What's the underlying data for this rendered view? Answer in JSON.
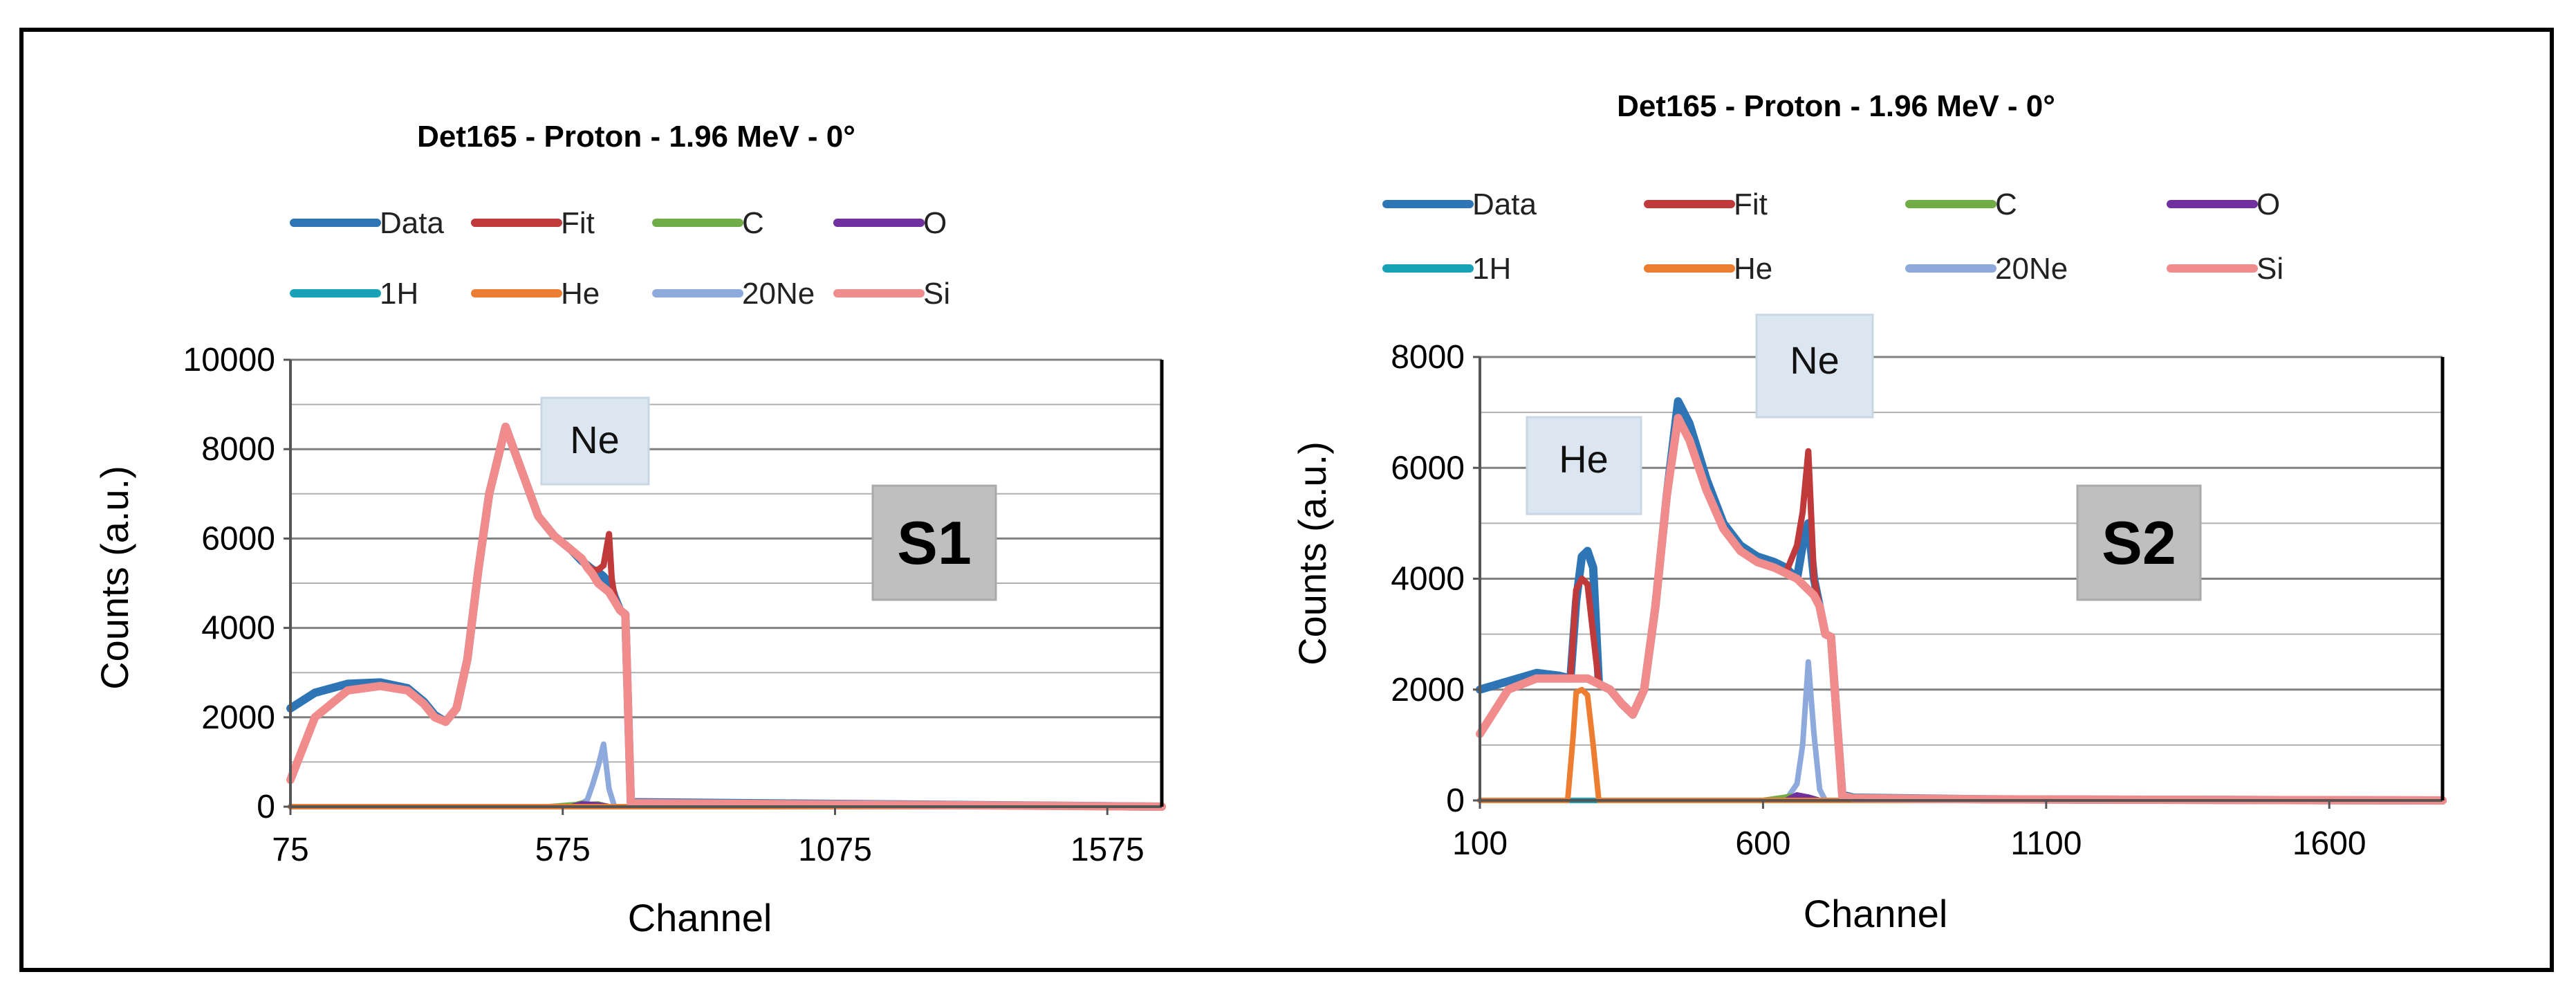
{
  "colors": {
    "Data": "#2E75B6",
    "Fit": "#C0393B",
    "C": "#70AD47",
    "O": "#7030A0",
    "1H": "#17A2B8",
    "He": "#ED7D31",
    "20Ne": "#8EA9DB",
    "Si": "#F08C8C",
    "grid": "#808080",
    "callout_bg": "#DCE6F1",
    "panel_bg": "#BFBFBF"
  },
  "chart_data": [
    {
      "type": "line",
      "title": "Det165 - Proton - 1.96 MeV - 0°",
      "xlabel": "Channel",
      "ylabel": "Counts (a.u.)",
      "xlim": [
        75,
        1675
      ],
      "ylim": [
        0,
        10000
      ],
      "xticks": [
        75,
        575,
        1075,
        1575
      ],
      "yticks": [
        0,
        2000,
        4000,
        6000,
        8000,
        10000
      ],
      "legend": [
        "Data",
        "Fit",
        "C",
        "O",
        "1H",
        "He",
        "20Ne",
        "Si"
      ],
      "callouts": [
        "Ne"
      ],
      "panel_label": "S1",
      "series": [
        {
          "name": "Data",
          "x": [
            75,
            120,
            180,
            240,
            290,
            320,
            340,
            360,
            380,
            400,
            420,
            440,
            470,
            500,
            530,
            560,
            590,
            610,
            620,
            630,
            640,
            650,
            660,
            665,
            670,
            680,
            690,
            700,
            1200,
            1675
          ],
          "y": [
            2200,
            2550,
            2750,
            2780,
            2650,
            2350,
            2050,
            1900,
            2200,
            3300,
            5300,
            7000,
            8500,
            7500,
            6500,
            6050,
            5750,
            5500,
            5400,
            5300,
            5250,
            5150,
            5000,
            4900,
            4700,
            4400,
            4300,
            100,
            50,
            0
          ]
        },
        {
          "name": "Fit",
          "x": [
            75,
            120,
            180,
            240,
            290,
            320,
            340,
            360,
            380,
            400,
            420,
            440,
            470,
            500,
            530,
            560,
            590,
            610,
            620,
            630,
            640,
            650,
            660,
            665,
            670,
            680,
            690,
            700,
            1200,
            1675
          ],
          "y": [
            600,
            2000,
            2600,
            2700,
            2600,
            2300,
            2000,
            1900,
            2200,
            3300,
            5300,
            7000,
            8500,
            7500,
            6500,
            6050,
            5750,
            5550,
            5400,
            5300,
            5300,
            5400,
            6100,
            5100,
            4700,
            4400,
            4300,
            80,
            40,
            0
          ]
        },
        {
          "name": "C",
          "x": [
            75,
            550,
            600,
            610,
            620,
            640,
            660,
            1675
          ],
          "y": [
            0,
            0,
            50,
            80,
            50,
            60,
            0,
            0
          ]
        },
        {
          "name": "O",
          "x": [
            75,
            590,
            610,
            640,
            660,
            1675
          ],
          "y": [
            0,
            0,
            60,
            40,
            0,
            0
          ]
        },
        {
          "name": "1H",
          "x": [
            75,
            1675
          ],
          "y": [
            0,
            0
          ]
        },
        {
          "name": "He",
          "x": [
            75,
            1675
          ],
          "y": [
            0,
            0
          ]
        },
        {
          "name": "20Ne",
          "x": [
            75,
            600,
            620,
            630,
            640,
            650,
            655,
            660,
            670,
            1675
          ],
          "y": [
            0,
            0,
            150,
            500,
            900,
            1400,
            900,
            400,
            0,
            0
          ]
        },
        {
          "name": "Si",
          "x": [
            75,
            120,
            180,
            240,
            290,
            320,
            340,
            360,
            380,
            400,
            420,
            440,
            470,
            500,
            530,
            560,
            590,
            610,
            620,
            630,
            640,
            650,
            660,
            665,
            670,
            680,
            690,
            700,
            1200,
            1675
          ],
          "y": [
            600,
            2000,
            2600,
            2700,
            2600,
            2300,
            2000,
            1900,
            2200,
            3300,
            5300,
            7000,
            8500,
            7500,
            6500,
            6050,
            5750,
            5550,
            5350,
            5200,
            5000,
            4900,
            4800,
            4700,
            4600,
            4400,
            4300,
            80,
            40,
            0
          ]
        }
      ]
    },
    {
      "type": "line",
      "title": "Det165 - Proton - 1.96 MeV - 0°",
      "xlabel": "Channel",
      "ylabel": "Counts (a.u.)",
      "xlim": [
        100,
        1800
      ],
      "ylim": [
        0,
        8000
      ],
      "xticks": [
        100,
        600,
        1100,
        1600
      ],
      "yticks": [
        0,
        2000,
        4000,
        6000,
        8000
      ],
      "legend": [
        "Data",
        "Fit",
        "C",
        "O",
        "1H",
        "He",
        "20Ne",
        "Si"
      ],
      "callouts": [
        "He",
        "Ne"
      ],
      "panel_label": "S2",
      "series": [
        {
          "name": "Data",
          "x": [
            100,
            150,
            200,
            240,
            260,
            270,
            280,
            290,
            300,
            310,
            330,
            350,
            370,
            390,
            410,
            430,
            450,
            470,
            500,
            530,
            560,
            590,
            620,
            640,
            660,
            670,
            680,
            690,
            700,
            710,
            720,
            740,
            760,
            1000,
            1800
          ],
          "y": [
            2000,
            2150,
            2300,
            2250,
            2200,
            3600,
            4400,
            4500,
            4200,
            2100,
            2000,
            1750,
            1550,
            2000,
            3500,
            5500,
            7200,
            6800,
            5800,
            5000,
            4600,
            4400,
            4300,
            4200,
            4000,
            4600,
            5000,
            4000,
            3500,
            3000,
            2950,
            100,
            50,
            20,
            0
          ]
        },
        {
          "name": "Fit",
          "x": [
            100,
            150,
            200,
            240,
            260,
            270,
            280,
            290,
            300,
            310,
            330,
            350,
            370,
            390,
            410,
            430,
            450,
            470,
            500,
            530,
            560,
            590,
            620,
            640,
            660,
            670,
            680,
            690,
            700,
            710,
            720,
            740,
            760,
            1000,
            1800
          ],
          "y": [
            1200,
            2000,
            2200,
            2200,
            2200,
            3800,
            4000,
            3900,
            3000,
            2100,
            2000,
            1750,
            1550,
            2000,
            3500,
            5500,
            6900,
            6500,
            5600,
            4900,
            4500,
            4300,
            4200,
            4100,
            4600,
            5200,
            6300,
            4000,
            3500,
            3000,
            2950,
            80,
            40,
            20,
            0
          ]
        },
        {
          "name": "C",
          "x": [
            100,
            600,
            640,
            650,
            660,
            680,
            700,
            1800
          ],
          "y": [
            0,
            0,
            60,
            80,
            50,
            60,
            0,
            0
          ]
        },
        {
          "name": "O",
          "x": [
            100,
            640,
            660,
            680,
            700,
            1800
          ],
          "y": [
            0,
            0,
            100,
            60,
            0,
            0
          ]
        },
        {
          "name": "1H",
          "x": [
            100,
            1800
          ],
          "y": [
            0,
            0
          ]
        },
        {
          "name": "He",
          "x": [
            100,
            255,
            265,
            270,
            280,
            290,
            300,
            310,
            1800
          ],
          "y": [
            0,
            0,
            1200,
            1950,
            2000,
            1900,
            1000,
            0,
            0
          ]
        },
        {
          "name": "20Ne",
          "x": [
            100,
            640,
            660,
            670,
            680,
            690,
            700,
            710,
            1800
          ],
          "y": [
            0,
            0,
            300,
            1000,
            2500,
            1200,
            200,
            0,
            0
          ]
        },
        {
          "name": "Si",
          "x": [
            100,
            150,
            200,
            240,
            260,
            270,
            280,
            290,
            300,
            310,
            330,
            350,
            370,
            390,
            410,
            430,
            450,
            470,
            500,
            530,
            560,
            590,
            620,
            640,
            660,
            670,
            680,
            690,
            700,
            710,
            720,
            740,
            760,
            1000,
            1800
          ],
          "y": [
            1200,
            2000,
            2200,
            2200,
            2200,
            2200,
            2200,
            2200,
            2150,
            2100,
            2000,
            1750,
            1550,
            2000,
            3500,
            5500,
            6900,
            6500,
            5600,
            4900,
            4500,
            4300,
            4200,
            4100,
            4000,
            3900,
            3800,
            3700,
            3500,
            3000,
            2950,
            80,
            40,
            20,
            0
          ]
        }
      ]
    }
  ]
}
